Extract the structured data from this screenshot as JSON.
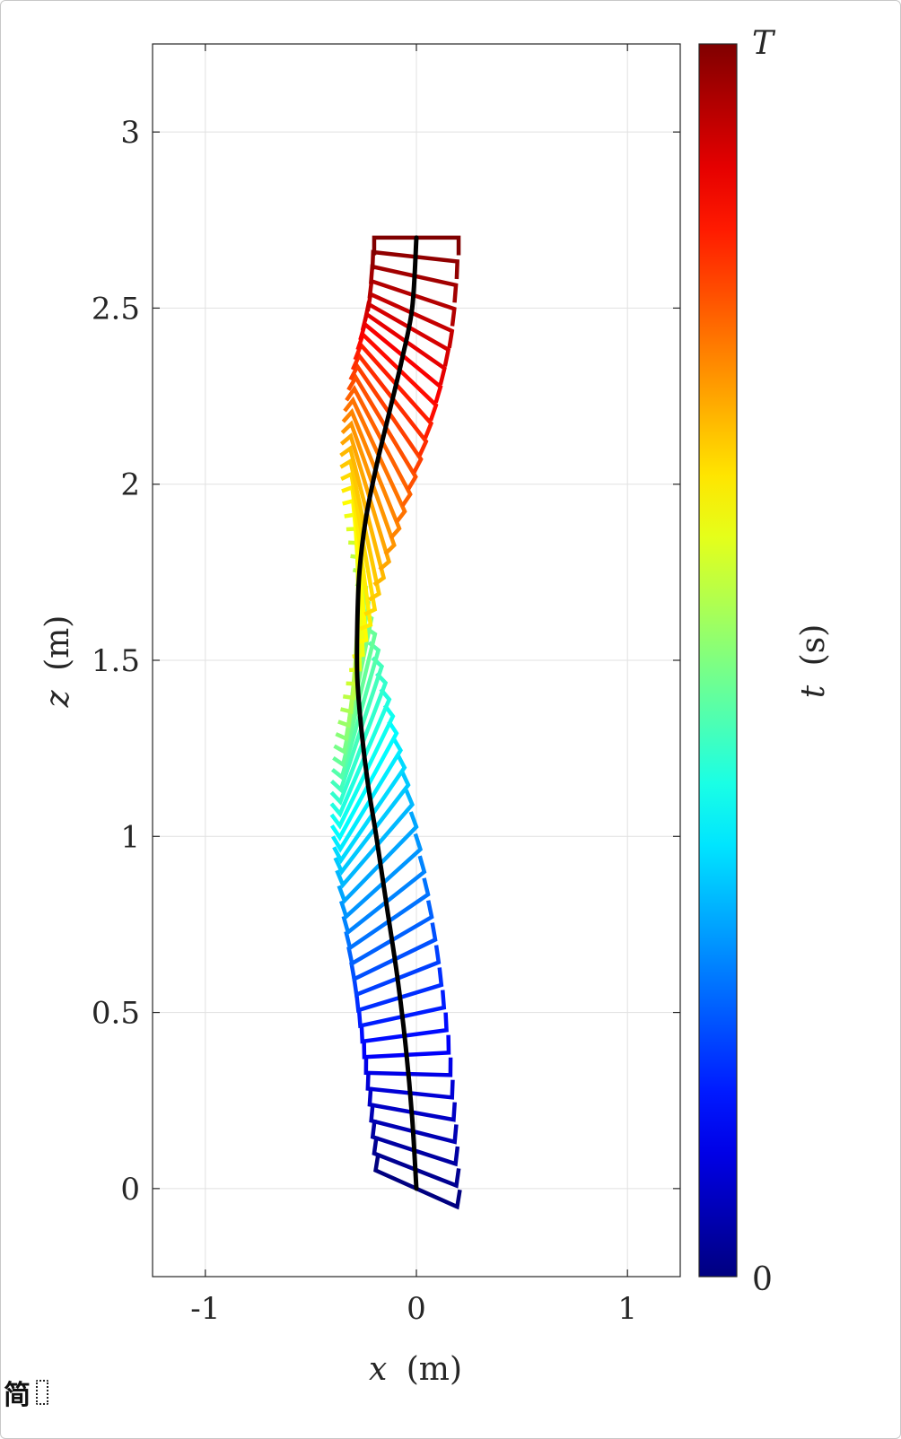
{
  "chart_data": {
    "type": "line",
    "xlabel_var": "x",
    "xlabel_unit": "(m)",
    "ylabel_var": "z",
    "ylabel_unit": "(m)",
    "xlim": [
      -1.25,
      1.25
    ],
    "ylim": [
      -0.25,
      3.25
    ],
    "xticks": [
      -1,
      0,
      1
    ],
    "xtick_labels": [
      "-1",
      "0",
      "1"
    ],
    "yticks": [
      0,
      0.5,
      1,
      1.5,
      2,
      2.5,
      3
    ],
    "ytick_labels": [
      "0",
      "0.5",
      "1",
      "1.5",
      "2",
      "2.5",
      "3"
    ],
    "grid": true,
    "colormap": "jet",
    "colorbar": {
      "label_var": "t",
      "label_unit": "(s)",
      "min_label": "0",
      "max_label": "T"
    },
    "trajectory": {
      "color": "#000000",
      "x": [
        0.0,
        -0.02,
        -0.05,
        -0.09,
        -0.14,
        -0.19,
        -0.23,
        -0.26,
        -0.28,
        -0.28,
        -0.27,
        -0.24,
        -0.19,
        -0.13,
        -0.07,
        -0.02,
        0.0
      ],
      "z": [
        0.0,
        0.2,
        0.4,
        0.6,
        0.8,
        1.0,
        1.15,
        1.3,
        1.45,
        1.6,
        1.75,
        1.9,
        2.05,
        2.2,
        2.35,
        2.5,
        2.7
      ]
    },
    "frames": {
      "count": 60,
      "link_length": 0.2,
      "heading_start_deg": -15,
      "heading_end_deg": 180
    }
  },
  "ime_indicator": {
    "glyph": "简",
    "icon": "dotted-box-icon"
  }
}
